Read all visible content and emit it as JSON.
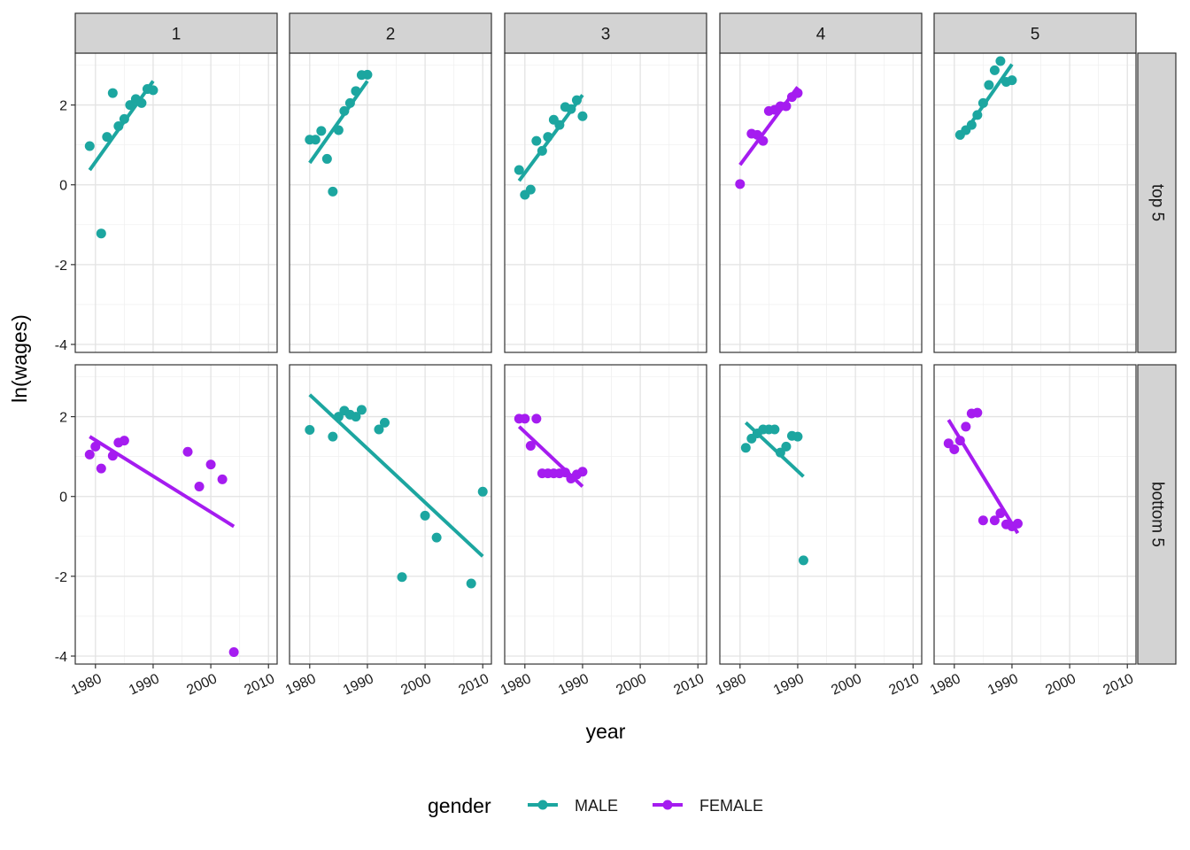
{
  "chart_data": {
    "type": "scatter",
    "facet_columns": [
      "1",
      "2",
      "3",
      "4",
      "5"
    ],
    "facet_rows": [
      "top 5",
      "bottom 5"
    ],
    "xlabel": "year",
    "ylabel": "ln(wages)",
    "xlim": [
      1976.5,
      2011.5
    ],
    "ylim": [
      -4.2,
      3.3
    ],
    "x_ticks": [
      1980,
      1990,
      2000,
      2010
    ],
    "y_ticks": [
      -4,
      -2,
      0,
      2
    ],
    "x_tick_labels": [
      "1980",
      "1990",
      "2000",
      "2010"
    ],
    "y_tick_labels": [
      "-4",
      "-2",
      "0",
      "2"
    ],
    "grid": true,
    "legend": {
      "title": "gender",
      "position": "bottom",
      "entries": [
        {
          "key": "MALE",
          "label": "MALE",
          "color": "#1CA6A0"
        },
        {
          "key": "FEMALE",
          "label": "FEMALE",
          "color": "#A51CF0"
        }
      ]
    },
    "panels": [
      {
        "row": "top 5",
        "col": "1",
        "gender": "MALE",
        "points": [
          [
            1979,
            0.97
          ],
          [
            1981,
            -1.22
          ],
          [
            1982,
            1.2
          ],
          [
            1983,
            2.3
          ],
          [
            1984,
            1.47
          ],
          [
            1985,
            1.65
          ],
          [
            1986,
            2.0
          ],
          [
            1987,
            2.15
          ],
          [
            1988,
            2.05
          ],
          [
            1989,
            2.4
          ],
          [
            1990,
            2.37
          ]
        ],
        "fit": [
          [
            1979,
            0.37
          ],
          [
            1990,
            2.6
          ]
        ]
      },
      {
        "row": "top 5",
        "col": "2",
        "gender": "MALE",
        "points": [
          [
            1980,
            1.13
          ],
          [
            1981,
            1.13
          ],
          [
            1982,
            1.35
          ],
          [
            1983,
            0.65
          ],
          [
            1984,
            -0.17
          ],
          [
            1985,
            1.37
          ],
          [
            1986,
            1.85
          ],
          [
            1987,
            2.05
          ],
          [
            1988,
            2.35
          ],
          [
            1989,
            2.75
          ],
          [
            1990,
            2.76
          ]
        ],
        "fit": [
          [
            1980,
            0.55
          ],
          [
            1990,
            2.6
          ]
        ]
      },
      {
        "row": "top 5",
        "col": "3",
        "gender": "MALE",
        "points": [
          [
            1979,
            0.37
          ],
          [
            1980,
            -0.25
          ],
          [
            1981,
            -0.12
          ],
          [
            1982,
            1.1
          ],
          [
            1983,
            0.85
          ],
          [
            1984,
            1.2
          ],
          [
            1985,
            1.63
          ],
          [
            1986,
            1.5
          ],
          [
            1987,
            1.95
          ],
          [
            1988,
            1.9
          ],
          [
            1989,
            2.12
          ],
          [
            1990,
            1.72
          ]
        ],
        "fit": [
          [
            1979,
            0.1
          ],
          [
            1990,
            2.25
          ]
        ]
      },
      {
        "row": "top 5",
        "col": "4",
        "gender": "FEMALE",
        "points": [
          [
            1980,
            0.02
          ],
          [
            1982,
            1.28
          ],
          [
            1983,
            1.25
          ],
          [
            1984,
            1.1
          ],
          [
            1985,
            1.85
          ],
          [
            1986,
            1.88
          ],
          [
            1987,
            1.97
          ],
          [
            1988,
            1.97
          ],
          [
            1989,
            2.2
          ],
          [
            1990,
            2.3
          ]
        ],
        "fit": [
          [
            1980,
            0.5
          ],
          [
            1990,
            2.45
          ]
        ]
      },
      {
        "row": "top 5",
        "col": "5",
        "gender": "MALE",
        "points": [
          [
            1981,
            1.25
          ],
          [
            1982,
            1.37
          ],
          [
            1983,
            1.5
          ],
          [
            1984,
            1.75
          ],
          [
            1985,
            2.05
          ],
          [
            1986,
            2.5
          ],
          [
            1987,
            2.87
          ],
          [
            1988,
            3.1
          ],
          [
            1989,
            2.58
          ],
          [
            1990,
            2.62
          ]
        ],
        "fit": [
          [
            1981,
            1.15
          ],
          [
            1990,
            3.02
          ]
        ]
      },
      {
        "row": "bottom 5",
        "col": "1",
        "gender": "FEMALE",
        "points": [
          [
            1979,
            1.05
          ],
          [
            1980,
            1.25
          ],
          [
            1981,
            0.7
          ],
          [
            1983,
            1.02
          ],
          [
            1984,
            1.35
          ],
          [
            1985,
            1.4
          ],
          [
            1996,
            1.12
          ],
          [
            1998,
            0.25
          ],
          [
            2000,
            0.8
          ],
          [
            2002,
            0.43
          ],
          [
            2004,
            -3.9
          ]
        ],
        "fit": [
          [
            1979,
            1.5
          ],
          [
            2004,
            -0.75
          ]
        ]
      },
      {
        "row": "bottom 5",
        "col": "2",
        "gender": "MALE",
        "points": [
          [
            1980,
            1.67
          ],
          [
            1984,
            1.5
          ],
          [
            1985,
            2.0
          ],
          [
            1986,
            2.15
          ],
          [
            1987,
            2.05
          ],
          [
            1988,
            2.0
          ],
          [
            1989,
            2.17
          ],
          [
            1992,
            1.68
          ],
          [
            1993,
            1.85
          ],
          [
            1996,
            -2.02
          ],
          [
            2000,
            -0.48
          ],
          [
            2002,
            -1.03
          ],
          [
            2008,
            -2.18
          ],
          [
            2010,
            0.12
          ]
        ],
        "fit": [
          [
            1980,
            2.55
          ],
          [
            2010,
            -1.5
          ]
        ]
      },
      {
        "row": "bottom 5",
        "col": "3",
        "gender": "FEMALE",
        "points": [
          [
            1979,
            1.95
          ],
          [
            1980,
            1.95
          ],
          [
            1981,
            1.27
          ],
          [
            1982,
            1.95
          ],
          [
            1983,
            0.58
          ],
          [
            1984,
            0.58
          ],
          [
            1985,
            0.58
          ],
          [
            1986,
            0.58
          ],
          [
            1987,
            0.6
          ],
          [
            1988,
            0.45
          ],
          [
            1989,
            0.55
          ],
          [
            1990,
            0.62
          ]
        ],
        "fit": [
          [
            1979,
            1.75
          ],
          [
            1990,
            0.25
          ]
        ]
      },
      {
        "row": "bottom 5",
        "col": "4",
        "gender": "MALE",
        "points": [
          [
            1981,
            1.22
          ],
          [
            1982,
            1.45
          ],
          [
            1983,
            1.58
          ],
          [
            1984,
            1.68
          ],
          [
            1985,
            1.68
          ],
          [
            1986,
            1.68
          ],
          [
            1987,
            1.1
          ],
          [
            1988,
            1.25
          ],
          [
            1989,
            1.52
          ],
          [
            1990,
            1.5
          ],
          [
            1991,
            -1.6
          ]
        ],
        "fit": [
          [
            1981,
            1.85
          ],
          [
            1991,
            0.5
          ]
        ]
      },
      {
        "row": "bottom 5",
        "col": "5",
        "gender": "FEMALE",
        "points": [
          [
            1979,
            1.33
          ],
          [
            1980,
            1.18
          ],
          [
            1981,
            1.4
          ],
          [
            1982,
            1.75
          ],
          [
            1983,
            2.08
          ],
          [
            1984,
            2.1
          ],
          [
            1985,
            -0.6
          ],
          [
            1987,
            -0.6
          ],
          [
            1988,
            -0.42
          ],
          [
            1989,
            -0.7
          ],
          [
            1990,
            -0.75
          ],
          [
            1991,
            -0.68
          ]
        ],
        "fit": [
          [
            1979,
            1.92
          ],
          [
            1991,
            -0.92
          ]
        ]
      }
    ]
  }
}
